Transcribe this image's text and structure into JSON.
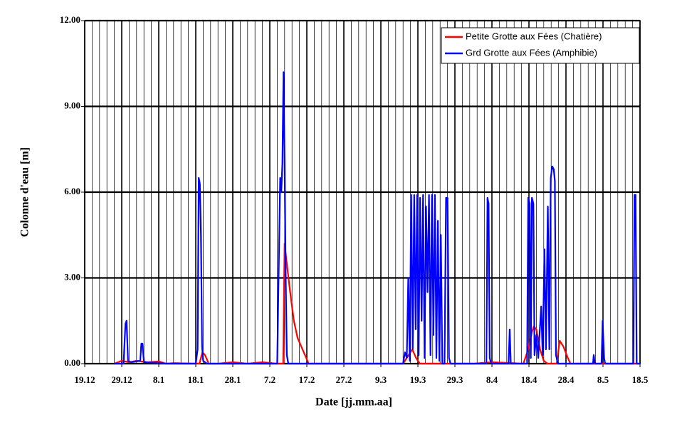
{
  "chart_data": {
    "type": "line",
    "xlabel": "Date [jj.mm.aa]",
    "ylabel": "Colonne d'eau [m]",
    "xlim": [
      0,
      150
    ],
    "ylim": [
      0,
      12
    ],
    "xticks": [
      {
        "value": 0,
        "label": "19.12"
      },
      {
        "value": 10,
        "label": "29.12"
      },
      {
        "value": 20,
        "label": "8.1"
      },
      {
        "value": 30,
        "label": "18.1"
      },
      {
        "value": 40,
        "label": "28.1"
      },
      {
        "value": 50,
        "label": "7.2"
      },
      {
        "value": 60,
        "label": "17.2"
      },
      {
        "value": 70,
        "label": "27.2"
      },
      {
        "value": 80,
        "label": "9.3"
      },
      {
        "value": 90,
        "label": "19.3"
      },
      {
        "value": 100,
        "label": "29.3"
      },
      {
        "value": 110,
        "label": "8.4"
      },
      {
        "value": 120,
        "label": "18.4"
      },
      {
        "value": 130,
        "label": "28.4"
      },
      {
        "value": 140,
        "label": "8.5"
      },
      {
        "value": 150,
        "label": "18.5"
      }
    ],
    "yticks": [
      {
        "value": 0,
        "label": "0.00"
      },
      {
        "value": 3,
        "label": "3.00"
      },
      {
        "value": 6,
        "label": "6.00"
      },
      {
        "value": 9,
        "label": "9.00"
      },
      {
        "value": 12,
        "label": "12.00"
      }
    ],
    "x_minor_grid_step": 2,
    "grid": true,
    "legend": "upper right",
    "series": [
      {
        "name": "Petite Grotte aux Fées (Chatière)",
        "color": "#ff0000",
        "x": [
          8,
          10,
          12,
          14,
          17,
          20,
          22,
          24,
          31,
          31.8,
          32.5,
          33.5,
          36,
          40,
          44,
          48,
          52,
          53.6,
          54,
          54.5,
          55.5,
          56.5,
          57.5,
          58.5,
          59.5,
          60.5,
          86,
          87.5,
          88.5,
          89.5,
          90.5,
          105,
          110,
          118.5,
          119.8,
          120.8,
          121.3,
          122,
          123,
          124,
          125,
          127.5,
          128.3,
          129.3,
          130.5,
          131.2,
          150
        ],
        "values": [
          0,
          0.1,
          0.05,
          0.1,
          0.05,
          0.08,
          0,
          0.02,
          0,
          0.4,
          0.3,
          0,
          0,
          0.05,
          0,
          0.05,
          0,
          0,
          4.2,
          3.6,
          2.5,
          1.5,
          0.9,
          0.6,
          0.3,
          0,
          0,
          0.3,
          0.5,
          0.2,
          0,
          0,
          0.05,
          0,
          0.5,
          1.1,
          1.3,
          1.2,
          0.5,
          0.1,
          0,
          0,
          0.8,
          0.6,
          0.2,
          0,
          0
        ]
      },
      {
        "name": "Grd Grotte aux Fées (Amphibie)",
        "color": "#0000ff",
        "x": [
          8,
          10.5,
          11,
          11.3,
          11.7,
          12.5,
          15,
          15.3,
          15.6,
          16,
          22,
          30,
          30.5,
          30.8,
          31.1,
          31.4,
          31.7,
          32,
          33,
          52,
          52.8,
          53.1,
          53.4,
          53.7,
          54,
          54.3,
          54.6,
          55,
          86,
          86.5,
          87,
          87.4,
          87.8,
          88.2,
          88.6,
          89,
          89.4,
          89.8,
          90.2,
          90.6,
          91,
          91.4,
          91.8,
          92.2,
          92.6,
          93,
          93.4,
          93.8,
          94.2,
          94.6,
          95,
          95.4,
          95.8,
          96.2,
          96.6,
          97.2,
          97.6,
          98,
          98.4,
          98.8,
          108.5,
          108.8,
          109.1,
          109.4,
          109.8,
          114.5,
          114.8,
          115.1,
          119.5,
          119.8,
          120.2,
          120.5,
          120.8,
          121.2,
          121.5,
          122,
          122.5,
          123.3,
          123.7,
          124.2,
          124.6,
          125.1,
          125.5,
          125.9,
          126.3,
          126.7,
          127,
          127.3,
          127.8,
          137.3,
          137.5,
          137.8,
          139.6,
          139.9,
          140.3,
          140.6,
          148.2,
          148.5,
          148.8,
          149.1,
          150
        ],
        "values": [
          0,
          0,
          1.4,
          1.5,
          0.1,
          0.05,
          0.1,
          0.7,
          0.7,
          0.05,
          0,
          0,
          0.5,
          6.5,
          6.3,
          4.5,
          0.6,
          0.1,
          0,
          0,
          6.5,
          6.0,
          7.0,
          10.2,
          7.0,
          3.0,
          0.3,
          0,
          0,
          0.4,
          0.2,
          3.0,
          0.1,
          5.9,
          0.5,
          5.9,
          1.2,
          5.9,
          0.3,
          5.8,
          1.5,
          5.9,
          0.2,
          5.5,
          2.5,
          5.9,
          0.3,
          5.9,
          1.0,
          5.9,
          0.2,
          5.0,
          0.1,
          4.5,
          0,
          0,
          5.8,
          5.8,
          0.2,
          0,
          0,
          5.8,
          5.6,
          0.2,
          0,
          0,
          1.2,
          0,
          0,
          5.8,
          5.6,
          0.2,
          5.8,
          5.6,
          0.3,
          1.0,
          0.2,
          2.0,
          0.3,
          4.0,
          0.5,
          5.5,
          0.5,
          6.5,
          6.9,
          6.8,
          6.4,
          0.3,
          0,
          0,
          0.3,
          0,
          0,
          1.5,
          0.2,
          0,
          0,
          5.9,
          5.9,
          0,
          0
        ]
      }
    ]
  }
}
